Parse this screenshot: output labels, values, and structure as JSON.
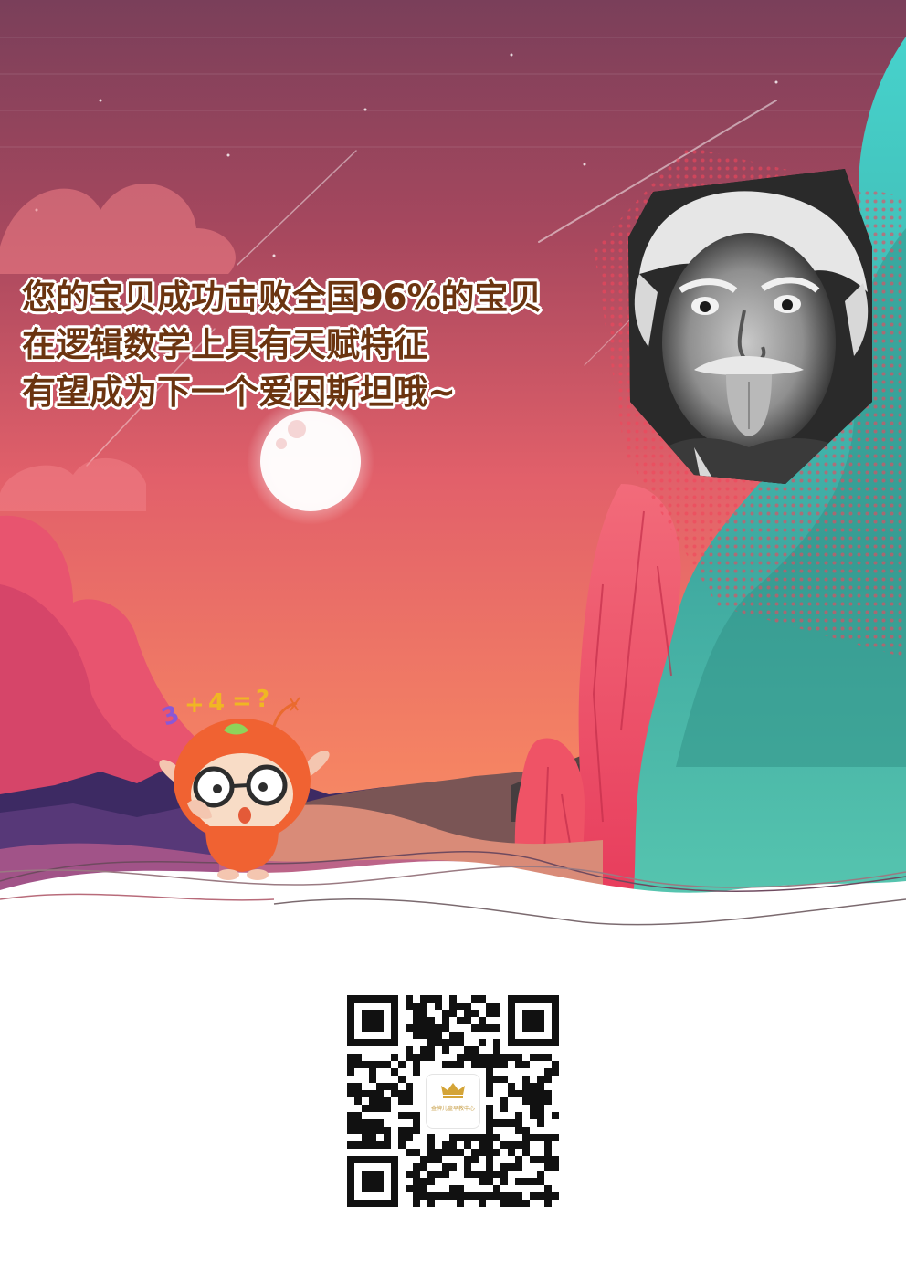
{
  "headline": {
    "lines": [
      "您的宝贝成功击败全国96%的宝贝",
      "在逻辑数学上具有天赋特征",
      "有望成为下一个爱因斯坦哦~"
    ],
    "color": "#6b3410",
    "outline_color": "#ffffff"
  },
  "mascot": {
    "question_text": "3+4=?"
  },
  "portrait": {
    "subject": "einstein-photo"
  },
  "qr": {
    "logo_text": "金牌儿童早教中心"
  },
  "colors": {
    "sky_top": "#7a3f5a",
    "sky_mid": "#e86a63",
    "sky_bottom": "#f58a63",
    "teal": "#4fc6b8",
    "pink_red": "#ef4f67",
    "mascot_orange": "#f06232"
  }
}
